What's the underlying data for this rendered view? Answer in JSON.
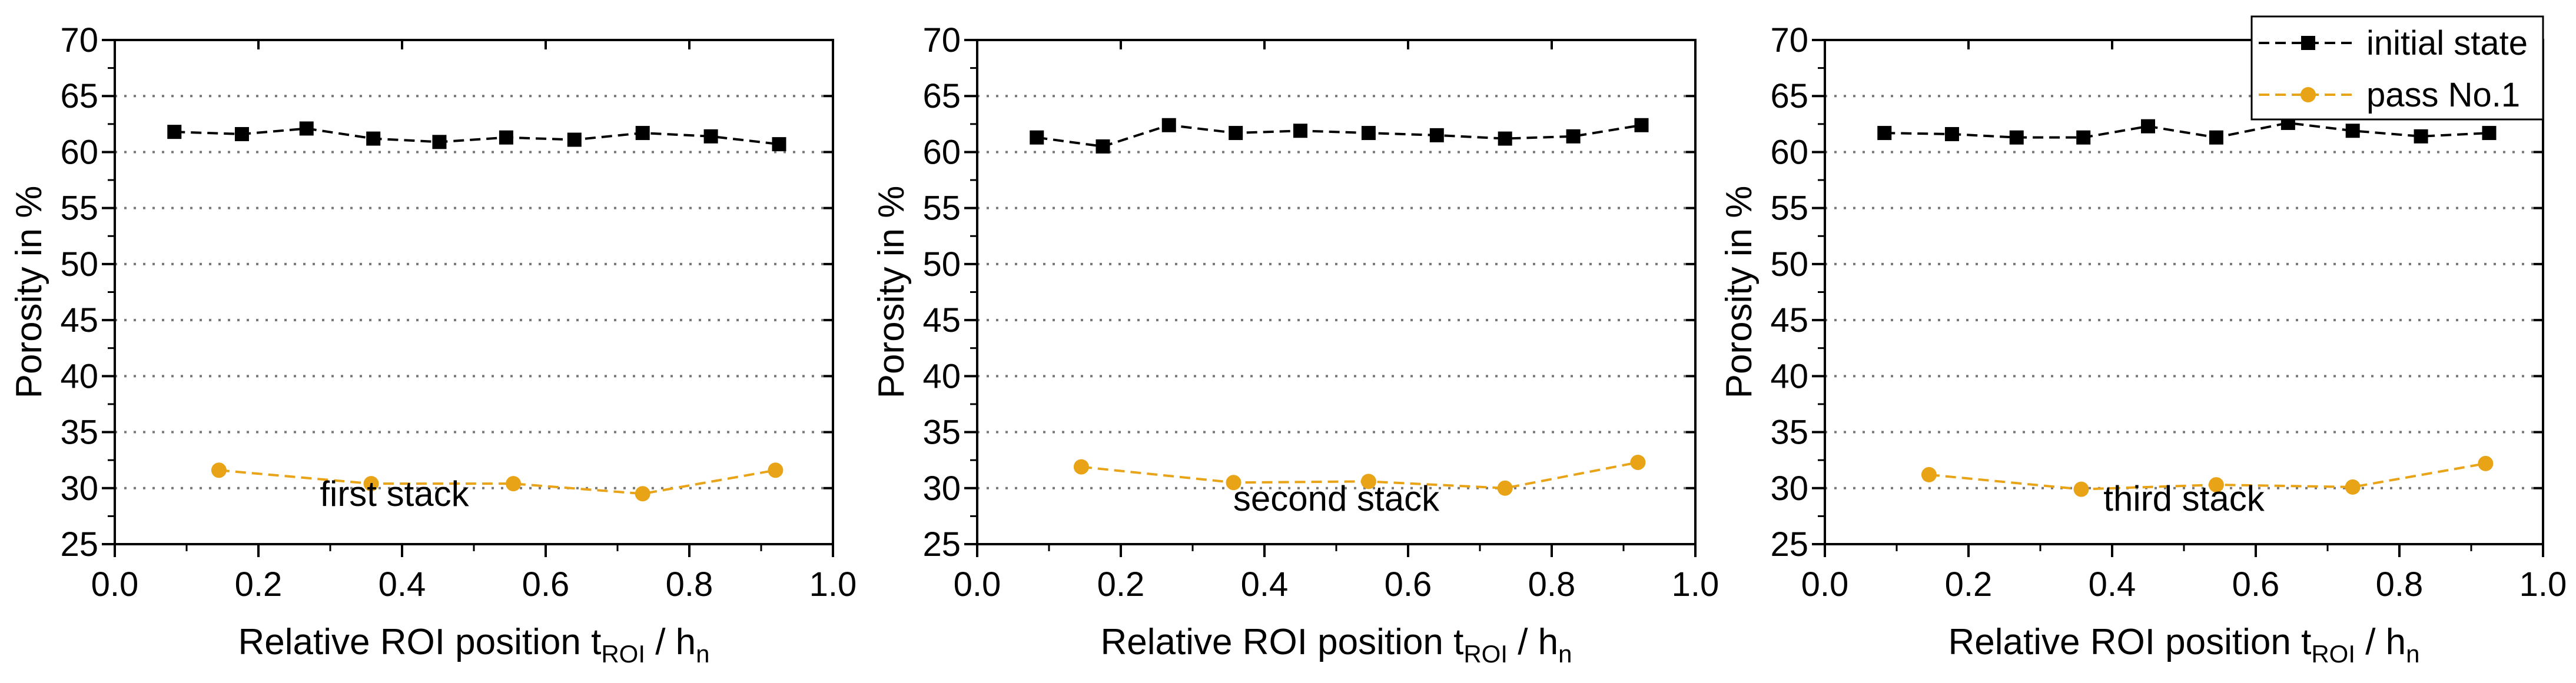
{
  "chart_data": [
    {
      "type": "line",
      "panel_label": "first stack",
      "xlabel": {
        "main": "Relative ROI position t",
        "sub1": "ROI",
        "mid": " / h",
        "sub2": "n"
      },
      "ylabel": "Porosity in %",
      "xlim": [
        0.0,
        1.0
      ],
      "ylim": [
        25,
        70
      ],
      "xticks": [
        "0.0",
        "0.2",
        "0.4",
        "0.6",
        "0.8",
        "1.0"
      ],
      "yticks": [
        "25",
        "30",
        "35",
        "40",
        "45",
        "50",
        "55",
        "60",
        "65",
        "70"
      ],
      "grid": "horizontal-dotted",
      "series": [
        {
          "name": "initial state",
          "color": "#000000",
          "marker": "square",
          "x": [
            0.083,
            0.177,
            0.267,
            0.36,
            0.452,
            0.545,
            0.64,
            0.735,
            0.83,
            0.925
          ],
          "y": [
            61.8,
            61.6,
            62.1,
            61.2,
            60.9,
            61.3,
            61.1,
            61.7,
            61.4,
            60.7
          ]
        },
        {
          "name": "pass No.1",
          "color": "#e8a317",
          "marker": "circle",
          "x": [
            0.145,
            0.357,
            0.555,
            0.735,
            0.92
          ],
          "y": [
            31.6,
            30.4,
            30.4,
            29.5,
            31.6
          ]
        }
      ]
    },
    {
      "type": "line",
      "panel_label": "second stack",
      "xlabel": {
        "main": "Relative ROI position t",
        "sub1": "ROI",
        "mid": " / h",
        "sub2": "n"
      },
      "ylabel": "Porosity in %",
      "xlim": [
        0.0,
        1.0
      ],
      "ylim": [
        25,
        70
      ],
      "xticks": [
        "0.0",
        "0.2",
        "0.4",
        "0.6",
        "0.8",
        "1.0"
      ],
      "yticks": [
        "25",
        "30",
        "35",
        "40",
        "45",
        "50",
        "55",
        "60",
        "65",
        "70"
      ],
      "grid": "horizontal-dotted",
      "series": [
        {
          "name": "initial state",
          "color": "#000000",
          "marker": "square",
          "x": [
            0.083,
            0.175,
            0.267,
            0.36,
            0.45,
            0.545,
            0.64,
            0.735,
            0.83,
            0.925
          ],
          "y": [
            61.3,
            60.5,
            62.4,
            61.7,
            61.9,
            61.7,
            61.5,
            61.2,
            61.4,
            62.4
          ]
        },
        {
          "name": "pass No.1",
          "color": "#e8a317",
          "marker": "circle",
          "x": [
            0.145,
            0.357,
            0.545,
            0.735,
            0.92
          ],
          "y": [
            31.9,
            30.5,
            30.6,
            30.0,
            32.3
          ]
        }
      ]
    },
    {
      "type": "line",
      "panel_label": "third stack",
      "xlabel": {
        "main": "Relative ROI position t",
        "sub1": "ROI",
        "mid": " / h",
        "sub2": "n"
      },
      "ylabel": "Porosity in %",
      "xlim": [
        0.0,
        1.0
      ],
      "ylim": [
        25,
        70
      ],
      "xticks": [
        "0.0",
        "0.2",
        "0.4",
        "0.6",
        "0.8",
        "1.0"
      ],
      "yticks": [
        "25",
        "30",
        "35",
        "40",
        "45",
        "50",
        "55",
        "60",
        "65",
        "70"
      ],
      "grid": "horizontal-dotted",
      "legend": "top-right",
      "series": [
        {
          "name": "initial state",
          "color": "#000000",
          "marker": "square",
          "x": [
            0.083,
            0.177,
            0.267,
            0.36,
            0.45,
            0.545,
            0.645,
            0.735,
            0.83,
            0.925
          ],
          "y": [
            61.7,
            61.6,
            61.3,
            61.3,
            62.3,
            61.3,
            62.6,
            61.9,
            61.4,
            61.7
          ]
        },
        {
          "name": "pass No.1",
          "color": "#e8a317",
          "marker": "circle",
          "x": [
            0.145,
            0.357,
            0.545,
            0.735,
            0.92
          ],
          "y": [
            31.2,
            29.9,
            30.3,
            30.1,
            32.2
          ]
        }
      ]
    }
  ]
}
